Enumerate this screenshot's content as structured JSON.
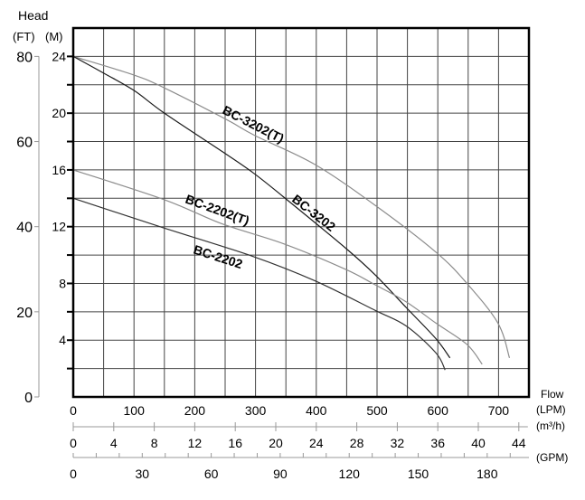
{
  "chart_data": {
    "type": "line",
    "title": "",
    "y_axis": {
      "title": "Head",
      "primary_unit": "(M)",
      "secondary_unit": "(FT)",
      "ylim": [
        0,
        26
      ],
      "major_ticks_m": [
        4,
        8,
        12,
        16,
        20,
        24
      ],
      "minor_step_m": 2,
      "ft_ticks": [
        0,
        20,
        40,
        60,
        80
      ]
    },
    "x_axis": {
      "title": "Flow",
      "primary_unit": "(LPM)",
      "xlim": [
        0,
        750
      ],
      "grid_step": 50,
      "lpm_ticks": [
        0,
        100,
        200,
        300,
        400,
        500,
        600,
        700
      ],
      "m3h_unit": "(m³/h)",
      "m3h_ticks": [
        0,
        4,
        8,
        12,
        16,
        20,
        24,
        28,
        32,
        36,
        40,
        44
      ],
      "gpm_unit": "(GPM)",
      "gpm_ticks": [
        0,
        30,
        60,
        90,
        120,
        150,
        180
      ],
      "gpm_minor_step": 10
    },
    "grid": true,
    "series": [
      {
        "name": "BC-3202(T)",
        "color": "#8c8c8c",
        "x": [
          0,
          99,
          149,
          250,
          300,
          397,
          497,
          597,
          648,
          699,
          718
        ],
        "y": [
          24,
          22.7,
          21.8,
          19.6,
          18.4,
          16.4,
          13.5,
          10.2,
          8.0,
          5.2,
          2.75
        ]
      },
      {
        "name": "BC-3202",
        "color": "#1a1a1a",
        "x": [
          0,
          51,
          100,
          150,
          245,
          296,
          346,
          448,
          497,
          548,
          597,
          620
        ],
        "y": [
          24,
          22.8,
          21.6,
          20.0,
          17.3,
          15.8,
          14.1,
          10.5,
          8.6,
          6.3,
          4.1,
          2.75
        ]
      },
      {
        "name": "BC-2202(T)",
        "color": "#8c8c8c",
        "x": [
          0,
          150,
          245,
          346,
          448,
          497,
          548,
          597,
          648,
          673
        ],
        "y": [
          16,
          13.9,
          12.2,
          10.8,
          9.0,
          7.9,
          6.7,
          5.2,
          3.7,
          2.3
        ]
      },
      {
        "name": "BC-2202",
        "color": "#333333",
        "x": [
          0,
          150,
          296,
          397,
          497,
          548,
          597,
          612
        ],
        "y": [
          14,
          11.9,
          9.9,
          8.2,
          6.1,
          5.0,
          3.1,
          1.9
        ]
      }
    ]
  }
}
